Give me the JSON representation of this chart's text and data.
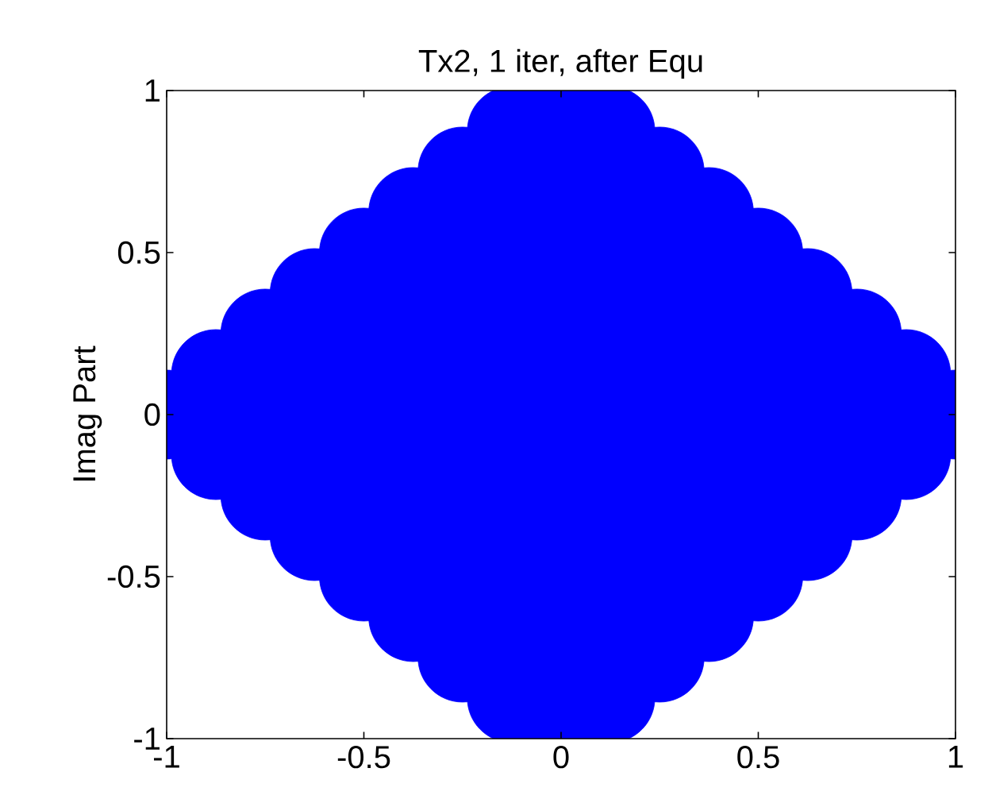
{
  "chart_data": {
    "type": "scatter",
    "title": "Tx2, 1 iter, after Equ",
    "ylabel": "Imag Part",
    "xlim": [
      -1,
      1
    ],
    "ylim": [
      -1,
      1
    ],
    "xticks": [
      -1,
      -0.5,
      0,
      0.5,
      1
    ],
    "yticks": [
      -1,
      -0.5,
      0,
      0.5,
      1
    ],
    "grid": false,
    "series": [
      {
        "color": "#0000ff",
        "x": [
          0,
          -0.125,
          0.125,
          -0.25,
          0,
          0.25,
          -0.375,
          -0.125,
          0.125,
          0.375,
          -0.5,
          -0.25,
          0,
          0.25,
          0.5,
          -0.625,
          -0.375,
          -0.125,
          0.125,
          0.375,
          0.625,
          -0.75,
          -0.5,
          -0.25,
          0,
          0.25,
          0.5,
          0.75,
          -0.875,
          -0.625,
          -0.375,
          -0.125,
          0.125,
          0.375,
          0.625,
          0.875,
          -1,
          -0.75,
          -0.5,
          -0.25,
          0,
          0.25,
          0.5,
          0.75,
          1,
          -0.875,
          -0.625,
          -0.375,
          -0.125,
          0.125,
          0.375,
          0.625,
          0.875,
          -0.75,
          -0.5,
          -0.25,
          0,
          0.25,
          0.5,
          0.75,
          -0.625,
          -0.375,
          -0.125,
          0.125,
          0.375,
          0.625,
          -0.5,
          -0.25,
          0,
          0.25,
          0.5,
          -0.375,
          -0.125,
          0.125,
          0.375,
          -0.25,
          0,
          0.25,
          -0.125,
          0.125,
          0
        ],
        "values": [
          1,
          0.875,
          0.875,
          0.75,
          0.75,
          0.75,
          0.625,
          0.625,
          0.625,
          0.625,
          0.5,
          0.5,
          0.5,
          0.5,
          0.5,
          0.375,
          0.375,
          0.375,
          0.375,
          0.375,
          0.375,
          0.25,
          0.25,
          0.25,
          0.25,
          0.25,
          0.25,
          0.25,
          0.125,
          0.125,
          0.125,
          0.125,
          0.125,
          0.125,
          0.125,
          0.125,
          0,
          0,
          0,
          0,
          0,
          0,
          0,
          0,
          0,
          -0.125,
          -0.125,
          -0.125,
          -0.125,
          -0.125,
          -0.125,
          -0.125,
          -0.125,
          -0.25,
          -0.25,
          -0.25,
          -0.25,
          -0.25,
          -0.25,
          -0.25,
          -0.375,
          -0.375,
          -0.375,
          -0.375,
          -0.375,
          -0.375,
          -0.5,
          -0.5,
          -0.5,
          -0.5,
          -0.5,
          -0.625,
          -0.625,
          -0.625,
          -0.625,
          -0.75,
          -0.75,
          -0.75,
          -0.875,
          -0.875,
          -1
        ]
      }
    ]
  }
}
